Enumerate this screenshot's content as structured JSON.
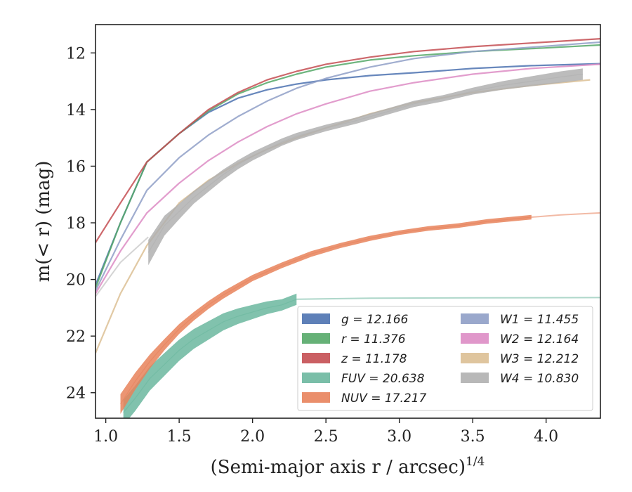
{
  "chart_data": {
    "type": "line",
    "title": "",
    "xlabel": "(Semi-major axis r / arcsec)",
    "xlabel_exponent": "1/4",
    "ylabel": "m(< r) (mag)",
    "xlim": [
      0.93,
      4.37
    ],
    "ylim": [
      24.9,
      11.0
    ],
    "y_inverted": true,
    "x_ticks": [
      1.0,
      1.5,
      2.0,
      2.5,
      3.0,
      3.5,
      4.0
    ],
    "x_tick_labels": [
      "1.0",
      "1.5",
      "2.0",
      "2.5",
      "3.0",
      "3.5",
      "4.0"
    ],
    "y_ticks": [
      12,
      14,
      16,
      18,
      20,
      22,
      24
    ],
    "y_tick_labels": [
      "12",
      "14",
      "16",
      "18",
      "20",
      "22",
      "24"
    ],
    "grid": false,
    "legend_position": "lower-right",
    "series": [
      {
        "key": "g",
        "name": "g = 12.166",
        "legend_label": "g = 12.166",
        "color": "#4c72b0",
        "band": false,
        "x": [
          0.93,
          1.1,
          1.28,
          1.5,
          1.7,
          1.9,
          2.1,
          2.3,
          2.5,
          2.8,
          3.1,
          3.5,
          3.9,
          4.37
        ],
        "y": [
          20.2,
          18.0,
          15.85,
          14.85,
          14.1,
          13.6,
          13.3,
          13.1,
          12.95,
          12.8,
          12.7,
          12.55,
          12.45,
          12.38
        ]
      },
      {
        "key": "r",
        "name": "r = 11.376",
        "legend_label": "r = 11.376",
        "color": "#55a868",
        "band": false,
        "x": [
          0.93,
          1.1,
          1.28,
          1.5,
          1.7,
          1.9,
          2.1,
          2.3,
          2.5,
          2.8,
          3.1,
          3.5,
          3.9,
          4.37
        ],
        "y": [
          20.3,
          18.0,
          15.85,
          14.85,
          14.05,
          13.45,
          13.05,
          12.75,
          12.5,
          12.25,
          12.1,
          11.95,
          11.85,
          11.72
        ]
      },
      {
        "key": "z",
        "name": "z = 11.178",
        "legend_label": "z = 11.178",
        "color": "#c44e52",
        "band": false,
        "x": [
          0.93,
          1.1,
          1.28,
          1.5,
          1.7,
          1.9,
          2.1,
          2.3,
          2.5,
          2.8,
          3.1,
          3.5,
          3.9,
          4.37
        ],
        "y": [
          18.7,
          17.3,
          15.85,
          14.85,
          14.0,
          13.4,
          12.95,
          12.65,
          12.4,
          12.15,
          11.95,
          11.78,
          11.65,
          11.5
        ]
      },
      {
        "key": "FUV",
        "name": "FUV = 20.638",
        "legend_label": "FUV = 20.638",
        "color": "#6bb79f",
        "band": true,
        "x": [
          1.12,
          1.2,
          1.3,
          1.4,
          1.5,
          1.6,
          1.7,
          1.8,
          1.9,
          2.0,
          2.1,
          2.2,
          2.3
        ],
        "y": [
          24.7,
          24.2,
          23.5,
          23.0,
          22.5,
          22.1,
          21.8,
          21.5,
          21.3,
          21.15,
          21.0,
          20.9,
          20.7
        ],
        "width": [
          0.9,
          0.9,
          0.85,
          0.8,
          0.75,
          0.7,
          0.65,
          0.6,
          0.55,
          0.5,
          0.45,
          0.4,
          0.4
        ],
        "extension": {
          "x": [
            2.3,
            2.8,
            3.5,
            4.37
          ],
          "y": [
            20.7,
            20.66,
            20.65,
            20.64
          ]
        }
      },
      {
        "key": "NUV",
        "name": "NUV = 17.217",
        "legend_label": "NUV = 17.217",
        "color": "#e8825b",
        "band": true,
        "x": [
          1.1,
          1.2,
          1.3,
          1.4,
          1.5,
          1.6,
          1.7,
          1.8,
          1.9,
          2.0,
          2.2,
          2.4,
          2.6,
          2.8,
          3.0,
          3.2,
          3.4,
          3.6,
          3.8,
          3.9
        ],
        "y": [
          24.4,
          23.6,
          22.9,
          22.3,
          21.75,
          21.3,
          20.9,
          20.55,
          20.25,
          19.95,
          19.5,
          19.1,
          18.8,
          18.55,
          18.35,
          18.2,
          18.1,
          17.95,
          17.85,
          17.8
        ],
        "width": [
          0.7,
          0.6,
          0.5,
          0.4,
          0.35,
          0.3,
          0.28,
          0.26,
          0.24,
          0.22,
          0.2,
          0.2,
          0.18,
          0.18,
          0.16,
          0.16,
          0.16,
          0.16,
          0.16,
          0.16
        ],
        "extension": {
          "x": [
            3.9,
            4.1,
            4.37
          ],
          "y": [
            17.8,
            17.72,
            17.65
          ]
        }
      },
      {
        "key": "W1",
        "name": "W1 = 11.455",
        "legend_label": "W1 = 11.455",
        "color": "#8f9fc7",
        "band": false,
        "x": [
          0.93,
          1.1,
          1.28,
          1.5,
          1.7,
          1.9,
          2.1,
          2.3,
          2.5,
          2.8,
          3.1,
          3.5,
          3.9,
          4.37
        ],
        "y": [
          20.4,
          18.6,
          16.85,
          15.7,
          14.9,
          14.25,
          13.7,
          13.25,
          12.9,
          12.5,
          12.2,
          11.95,
          11.8,
          11.62
        ]
      },
      {
        "key": "W2",
        "name": "W2 = 12.164",
        "legend_label": "W2 = 12.164",
        "color": "#dd8cc4",
        "band": false,
        "x": [
          0.93,
          1.1,
          1.28,
          1.5,
          1.7,
          1.9,
          2.1,
          2.3,
          2.5,
          2.8,
          3.1,
          3.5,
          3.9,
          4.37
        ],
        "y": [
          20.5,
          19.0,
          17.65,
          16.6,
          15.8,
          15.15,
          14.6,
          14.15,
          13.8,
          13.35,
          13.05,
          12.75,
          12.55,
          12.4
        ]
      },
      {
        "key": "W3",
        "name": "W3 = 12.212",
        "legend_label": "W3 = 12.212",
        "color": "#dcbf94",
        "band": false,
        "x": [
          0.93,
          1.1,
          1.28,
          1.5,
          1.7,
          1.9,
          2.1,
          2.3,
          2.5,
          2.8,
          3.1,
          3.5,
          3.9,
          4.3
        ],
        "y": [
          22.6,
          20.5,
          18.8,
          17.3,
          16.5,
          15.9,
          15.4,
          15.0,
          14.65,
          14.15,
          13.75,
          13.4,
          13.15,
          12.95
        ]
      },
      {
        "key": "W4",
        "name": "W4 = 10.830",
        "legend_label": "W4 = 10.830",
        "color": "#b0b0b0",
        "band": true,
        "x": [
          1.29,
          1.4,
          1.5,
          1.6,
          1.7,
          1.8,
          1.9,
          2.0,
          2.1,
          2.2,
          2.3,
          2.4,
          2.5,
          2.7,
          2.9,
          3.1,
          3.3,
          3.5,
          3.7,
          3.9,
          4.1,
          4.25
        ],
        "y": [
          19.05,
          18.1,
          17.6,
          17.1,
          16.7,
          16.3,
          15.95,
          15.65,
          15.4,
          15.15,
          14.95,
          14.8,
          14.65,
          14.4,
          14.1,
          13.8,
          13.6,
          13.35,
          13.15,
          13.0,
          12.85,
          12.75
        ],
        "width": [
          0.9,
          0.7,
          0.55,
          0.45,
          0.4,
          0.36,
          0.32,
          0.3,
          0.28,
          0.26,
          0.25,
          0.24,
          0.23,
          0.22,
          0.22,
          0.22,
          0.22,
          0.24,
          0.3,
          0.35,
          0.4,
          0.4
        ],
        "extension": {
          "x": [
            0.93,
            1.1,
            1.29
          ],
          "y": [
            20.6,
            19.4,
            18.5
          ]
        }
      }
    ],
    "legend_columns": [
      [
        "g",
        "r",
        "z",
        "FUV",
        "NUV"
      ],
      [
        "W1",
        "W2",
        "W3",
        "W4"
      ]
    ]
  }
}
